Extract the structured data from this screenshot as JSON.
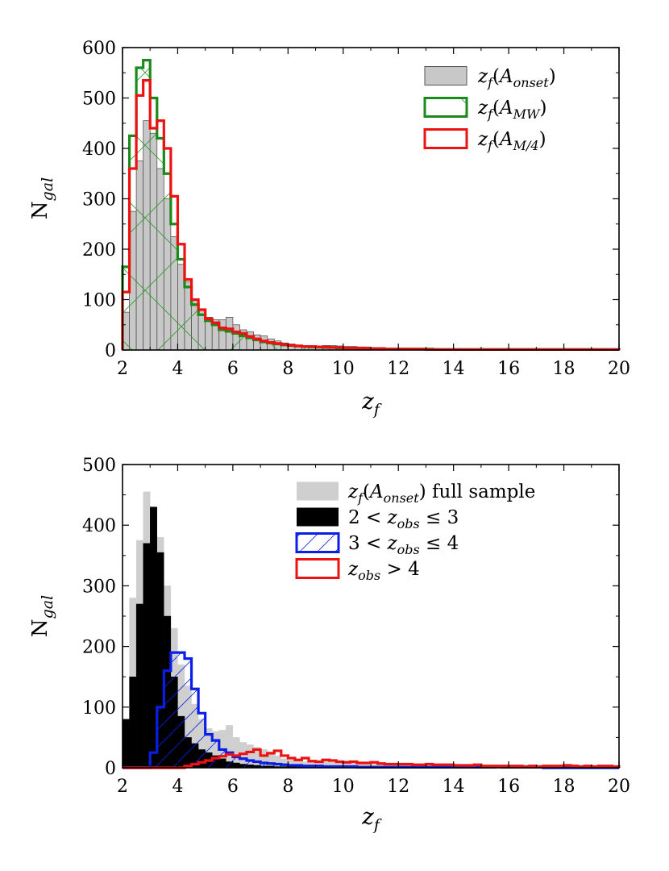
{
  "chart_data": [
    {
      "type": "histogram",
      "xlabel": "z_f",
      "ylabel": "N_gal",
      "xlim": [
        2,
        20
      ],
      "ylim": [
        0,
        600
      ],
      "xticks": [
        "2",
        "4",
        "6",
        "8",
        "10",
        "12",
        "14",
        "16",
        "18",
        "20"
      ],
      "yticks": [
        "0",
        "100",
        "200",
        "300",
        "400",
        "500",
        "600"
      ],
      "legend_position": "top-right",
      "bin_edges": [
        2.0,
        2.25,
        2.5,
        2.75,
        3.0,
        3.25,
        3.5,
        3.75,
        4.0,
        4.25,
        4.5,
        4.75,
        5.0,
        5.25,
        5.5,
        5.75,
        6.0,
        6.25,
        6.5,
        6.75,
        7.0,
        7.25,
        7.5,
        7.75,
        8.0,
        8.25,
        8.5,
        8.75,
        9.0,
        9.25,
        9.5,
        9.75,
        10.0,
        10.25,
        10.5,
        10.75,
        11.0,
        11.25,
        11.5,
        11.75,
        12.0,
        12.25,
        12.5,
        12.75,
        13.0,
        13.25,
        13.5,
        13.75,
        14.0,
        14.25,
        14.5,
        14.75,
        15.0,
        15.25,
        15.5,
        15.75,
        16.0,
        16.25,
        16.5,
        16.75,
        17.0,
        17.25,
        17.5,
        17.75,
        18.0,
        18.25,
        18.5,
        18.75,
        19.0,
        19.25,
        19.5,
        19.75,
        20.0
      ],
      "series": [
        {
          "name": "z_f(A_onset)",
          "legend_parts": {
            "base": "z",
            "sub": "f",
            "paren_open": "(",
            "calA": "A",
            "calA_sub": "onset",
            "paren_close": ")"
          },
          "style": "filled",
          "color": "#c8c8c8",
          "edge": "#555555",
          "values": [
            75,
            275,
            375,
            455,
            430,
            360,
            300,
            225,
            170,
            135,
            100,
            80,
            65,
            60,
            60,
            65,
            50,
            40,
            36,
            30,
            28,
            22,
            18,
            14,
            12,
            10,
            9,
            8,
            8,
            9,
            9,
            8,
            7,
            7,
            6,
            6,
            5,
            5,
            4,
            4,
            4,
            4,
            3,
            3,
            3,
            3,
            2,
            2,
            2,
            2,
            2,
            2,
            2,
            2,
            1,
            1,
            1,
            1,
            1,
            1,
            1,
            1,
            1,
            1,
            1,
            1,
            1,
            1,
            1,
            1,
            1,
            1
          ]
        },
        {
          "name": "z_f(A_MW)",
          "legend_parts": {
            "base": "z",
            "sub": "f",
            "paren_open": "(",
            "calA": "A",
            "calA_sub": "MW",
            "paren_close": ")"
          },
          "style": "step-hatched",
          "color": "#1a8a1a",
          "values": [
            165,
            425,
            560,
            575,
            500,
            420,
            350,
            250,
            180,
            125,
            90,
            70,
            58,
            50,
            40,
            37,
            33,
            28,
            24,
            20,
            16,
            14,
            12,
            10,
            9,
            8,
            7,
            6,
            6,
            5,
            5,
            4,
            4,
            4,
            3,
            3,
            3,
            3,
            2,
            2,
            2,
            2,
            2,
            2,
            2,
            1,
            1,
            1,
            1,
            1,
            1,
            1,
            1,
            1,
            1,
            1,
            1,
            1,
            1,
            1,
            1,
            1,
            1,
            1,
            1,
            1,
            1,
            1,
            1,
            1,
            1,
            1
          ]
        },
        {
          "name": "z_f(A_M/4)",
          "legend_parts": {
            "base": "z",
            "sub": "f",
            "paren_open": "(",
            "calA": "A",
            "calA_sub": "M/4",
            "paren_close": ")"
          },
          "style": "step",
          "color": "#ee1111",
          "values": [
            115,
            360,
            505,
            535,
            440,
            455,
            400,
            305,
            210,
            140,
            100,
            80,
            62,
            54,
            44,
            42,
            36,
            33,
            27,
            22,
            18,
            15,
            13,
            11,
            9,
            8,
            7,
            7,
            6,
            6,
            5,
            5,
            4,
            4,
            4,
            3,
            3,
            3,
            2,
            2,
            2,
            2,
            2,
            2,
            1,
            1,
            1,
            1,
            1,
            1,
            1,
            1,
            1,
            1,
            1,
            1,
            1,
            1,
            1,
            1,
            1,
            1,
            1,
            1,
            1,
            1,
            1,
            1,
            1,
            1,
            1,
            1
          ]
        }
      ]
    },
    {
      "type": "histogram",
      "xlabel": "z_f",
      "ylabel": "N_gal",
      "xlim": [
        2,
        20
      ],
      "ylim": [
        0,
        500
      ],
      "xticks": [
        "2",
        "4",
        "6",
        "8",
        "10",
        "12",
        "14",
        "16",
        "18",
        "20"
      ],
      "yticks": [
        "0",
        "100",
        "200",
        "300",
        "400",
        "500"
      ],
      "legend_position": "top-right",
      "bin_edges": [
        2.0,
        2.25,
        2.5,
        2.75,
        3.0,
        3.25,
        3.5,
        3.75,
        4.0,
        4.25,
        4.5,
        4.75,
        5.0,
        5.25,
        5.5,
        5.75,
        6.0,
        6.25,
        6.5,
        6.75,
        7.0,
        7.25,
        7.5,
        7.75,
        8.0,
        8.25,
        8.5,
        8.75,
        9.0,
        9.25,
        9.5,
        9.75,
        10.0,
        10.25,
        10.5,
        10.75,
        11.0,
        11.25,
        11.5,
        11.75,
        12.0,
        12.25,
        12.5,
        12.75,
        13.0,
        13.25,
        13.5,
        13.75,
        14.0,
        14.25,
        14.5,
        14.75,
        15.0,
        15.25,
        15.5,
        15.75,
        16.0,
        16.25,
        16.5,
        16.75,
        17.0,
        17.25,
        17.5,
        17.75,
        18.0,
        18.25,
        18.5,
        18.75,
        19.0,
        19.25,
        19.5,
        19.75,
        20.0
      ],
      "series": [
        {
          "name": "z_f(A_onset) full sample",
          "legend_parts": {
            "base": "z",
            "sub": "f",
            "paren_open": "(",
            "calA": "A",
            "calA_sub": "onset",
            "paren_close": ")",
            "suffix": " full sample"
          },
          "style": "filled-noedge",
          "color": "#cfcfcf",
          "values": [
            80,
            280,
            375,
            455,
            430,
            380,
            300,
            230,
            170,
            135,
            105,
            80,
            65,
            60,
            62,
            70,
            50,
            42,
            38,
            34,
            30,
            26,
            20,
            15,
            13,
            11,
            10,
            9,
            9,
            10,
            9,
            9,
            8,
            7,
            7,
            6,
            6,
            5,
            5,
            4,
            4,
            4,
            4,
            3,
            3,
            3,
            3,
            3,
            2,
            2,
            2,
            2,
            2,
            2,
            2,
            2,
            2,
            1,
            1,
            1,
            1,
            1,
            1,
            1,
            1,
            1,
            1,
            1,
            1,
            1,
            1,
            1
          ]
        },
        {
          "name": "2 < z_obs ≤ 3",
          "legend_parts": {
            "pre": "2 < ",
            "base": "z",
            "sub": "obs",
            "post": " ≤ 3"
          },
          "style": "filled-black",
          "color": "#000000",
          "values": [
            80,
            150,
            270,
            370,
            430,
            355,
            250,
            150,
            85,
            50,
            40,
            30,
            25,
            20,
            15,
            10,
            8,
            6,
            5,
            4,
            3,
            3,
            2,
            2,
            2,
            2,
            1,
            1,
            1,
            1,
            1,
            1,
            1,
            0,
            0,
            0,
            0,
            0,
            0,
            0,
            0,
            0,
            0,
            0,
            0,
            0,
            0,
            0,
            0,
            0,
            0,
            0,
            0,
            0,
            0,
            0,
            0,
            0,
            0,
            0,
            0,
            0,
            0,
            0,
            0,
            0,
            0,
            0,
            0,
            0,
            0,
            0
          ]
        },
        {
          "name": "3 < z_obs ≤ 4",
          "legend_parts": {
            "pre": "3 < ",
            "base": "z",
            "sub": "obs",
            "post": " ≤ 4"
          },
          "style": "step-hatched",
          "color": "#0b1ee8",
          "values": [
            0,
            0,
            0,
            0,
            25,
            100,
            160,
            190,
            190,
            180,
            130,
            90,
            55,
            45,
            30,
            25,
            18,
            15,
            12,
            10,
            8,
            7,
            6,
            5,
            4,
            4,
            3,
            3,
            3,
            2,
            2,
            2,
            2,
            2,
            1,
            1,
            1,
            1,
            1,
            1,
            1,
            1,
            1,
            1,
            1,
            1,
            1,
            1,
            1,
            1,
            1,
            1,
            1,
            1,
            2,
            1,
            1,
            1,
            1,
            1,
            1,
            0,
            0,
            0,
            0,
            0,
            0,
            0,
            0,
            0,
            0,
            0
          ]
        },
        {
          "name": "z_obs > 4",
          "legend_parts": {
            "base": "z",
            "sub": "obs",
            "post": " > 4"
          },
          "style": "step",
          "color": "#ee1111",
          "values": [
            0,
            0,
            0,
            0,
            0,
            0,
            0,
            0,
            0,
            3,
            6,
            9,
            12,
            16,
            19,
            22,
            20,
            23,
            26,
            30,
            20,
            24,
            28,
            20,
            16,
            13,
            16,
            11,
            10,
            13,
            12,
            10,
            9,
            10,
            8,
            8,
            9,
            7,
            6,
            6,
            6,
            6,
            5,
            5,
            6,
            5,
            5,
            5,
            4,
            4,
            4,
            5,
            3,
            3,
            3,
            3,
            3,
            3,
            2,
            3,
            2,
            3,
            3,
            3,
            4,
            3,
            2,
            3,
            2,
            3,
            3,
            2
          ]
        }
      ]
    }
  ]
}
